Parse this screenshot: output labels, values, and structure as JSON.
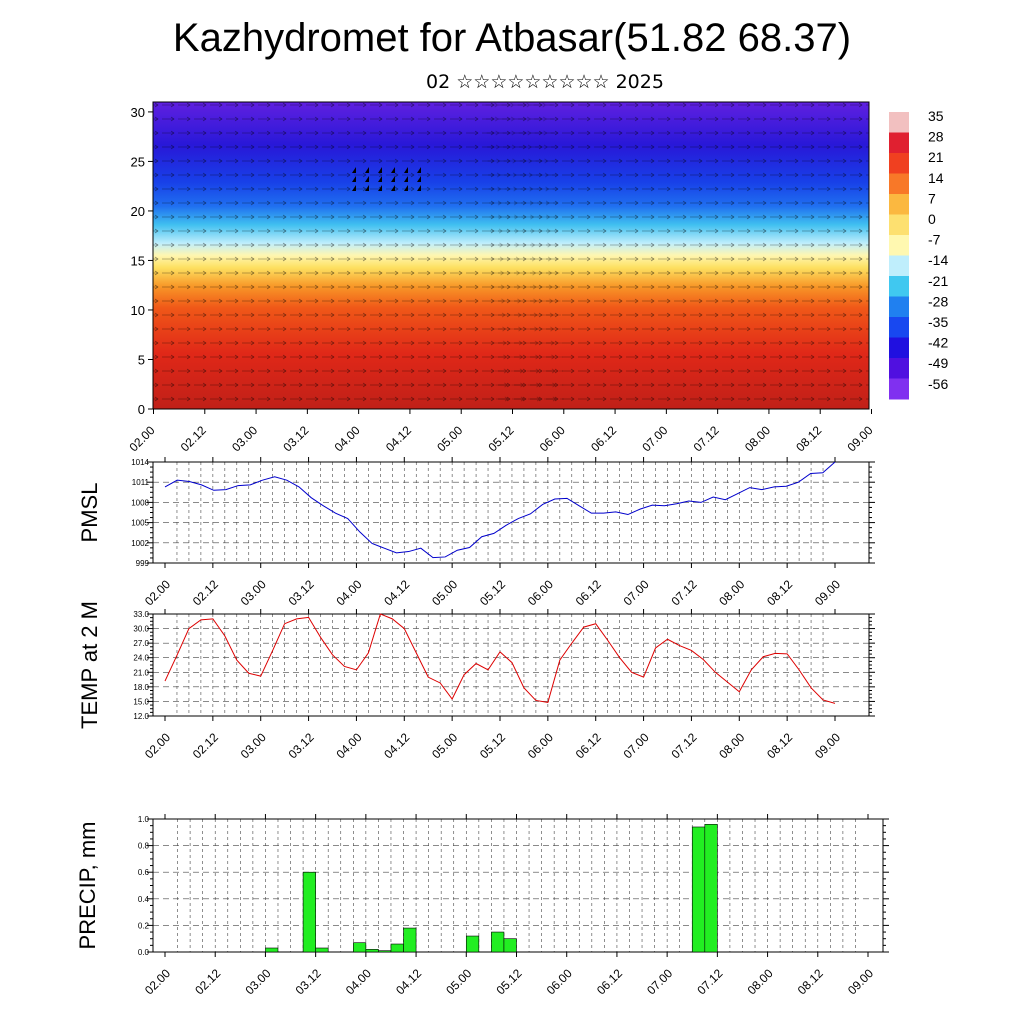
{
  "title": "Kazhydromet for Atbasar(51.82 68.37)",
  "subtitle": "02 ☆☆☆☆☆☆☆☆☆ 2025",
  "time_labels": [
    "02.00",
    "02.12",
    "03.00",
    "03.12",
    "04.00",
    "04.12",
    "05.00",
    "05.12",
    "06.00",
    "06.12",
    "07.00",
    "07.12",
    "08.00",
    "08.12",
    "09.00"
  ],
  "colors": {
    "pmsl_line": "#0000cc",
    "temp_line": "#dd0000",
    "precip_bar": "#22ee22"
  },
  "chart_data": [
    {
      "type": "heatmap",
      "name": "cross-section",
      "ylim": [
        0,
        31
      ],
      "yticks": [
        "0",
        "5",
        "10",
        "15",
        "20",
        "25",
        "30"
      ],
      "colorbar_labels": [
        "35",
        "28",
        "21",
        "14",
        "7",
        "0",
        "-7",
        "-14",
        "-21",
        "-28",
        "-35",
        "-42",
        "-49",
        "-56"
      ],
      "colorbar_colors": [
        "#f2c0c0",
        "#e02030",
        "#f04020",
        "#f87828",
        "#fbb840",
        "#fde070",
        "#fff8b0",
        "#bfeefc",
        "#40c8f0",
        "#2080f0",
        "#1848f0",
        "#2010e0",
        "#5010e0",
        "#8030f0"
      ]
    },
    {
      "type": "line",
      "name": "pmsl",
      "ylabel": "PMSL",
      "ylim": [
        999,
        1014
      ],
      "yticks": [
        "999",
        "1002",
        "1005",
        "1008",
        "1011",
        "1014"
      ],
      "x_step_hours": 3,
      "values": [
        1010.3,
        1011.3,
        1011.1,
        1010.6,
        1009.8,
        1009.9,
        1010.5,
        1010.6,
        1011.3,
        1011.8,
        1011.3,
        1010.3,
        1008.7,
        1007.5,
        1006.4,
        1005.6,
        1003.6,
        1001.9,
        1001.2,
        1000.5,
        1000.7,
        1001.2,
        999.8,
        999.9,
        1000.9,
        1001.3,
        1002.9,
        1003.4,
        1004.6,
        1005.6,
        1006.3,
        1007.7,
        1008.5,
        1008.6,
        1007.5,
        1006.4,
        1006.4,
        1006.6,
        1006.2,
        1007.0,
        1007.6,
        1007.5,
        1007.8,
        1008.2,
        1008.0,
        1008.8,
        1008.4,
        1009.3,
        1010.2,
        1009.9,
        1010.3,
        1010.4,
        1011.0,
        1012.3,
        1012.4,
        1014.0
      ]
    },
    {
      "type": "line",
      "name": "temperature",
      "ylabel": "TEMP at 2 M",
      "ylim": [
        12,
        33
      ],
      "yticks": [
        "12.0",
        "15.0",
        "18.0",
        "21.0",
        "24.0",
        "27.0",
        "30.0",
        "33.0"
      ],
      "x_step_hours": 3,
      "values": [
        19.2,
        24.5,
        30.0,
        31.8,
        32.0,
        28.5,
        23.5,
        20.8,
        20.2,
        25.5,
        31.0,
        32.0,
        32.3,
        28.2,
        24.6,
        22.2,
        21.5,
        25.0,
        33.0,
        32.0,
        30.0,
        25.0,
        20.0,
        18.8,
        15.5,
        20.5,
        22.8,
        21.5,
        25.2,
        23.0,
        17.8,
        15.2,
        14.8,
        23.5,
        27.0,
        30.3,
        31.0,
        27.6,
        24.0,
        21.0,
        20.0,
        26.0,
        27.8,
        26.5,
        25.5,
        23.6,
        21.0,
        19.0,
        17.0,
        21.5,
        24.2,
        24.9,
        24.8,
        21.5,
        17.8,
        15.3,
        14.6
      ]
    },
    {
      "type": "bar",
      "name": "precipitation",
      "ylabel": "PRECIP, mm",
      "ylim": [
        0,
        1
      ],
      "yticks": [
        "0.0",
        "0.2",
        "0.4",
        "0.6",
        "0.8",
        "1.0"
      ],
      "bars": [
        {
          "x_hours": 25.5,
          "value": 0.03
        },
        {
          "x_hours": 34.5,
          "value": 0.6
        },
        {
          "x_hours": 37.5,
          "value": 0.03
        },
        {
          "x_hours": 46.5,
          "value": 0.07
        },
        {
          "x_hours": 49.5,
          "value": 0.02
        },
        {
          "x_hours": 52.5,
          "value": 0.01
        },
        {
          "x_hours": 55.5,
          "value": 0.06
        },
        {
          "x_hours": 58.5,
          "value": 0.18
        },
        {
          "x_hours": 73.5,
          "value": 0.12
        },
        {
          "x_hours": 79.5,
          "value": 0.15
        },
        {
          "x_hours": 82.5,
          "value": 0.1
        },
        {
          "x_hours": 127.5,
          "value": 0.94
        },
        {
          "x_hours": 130.5,
          "value": 0.96
        }
      ]
    }
  ]
}
